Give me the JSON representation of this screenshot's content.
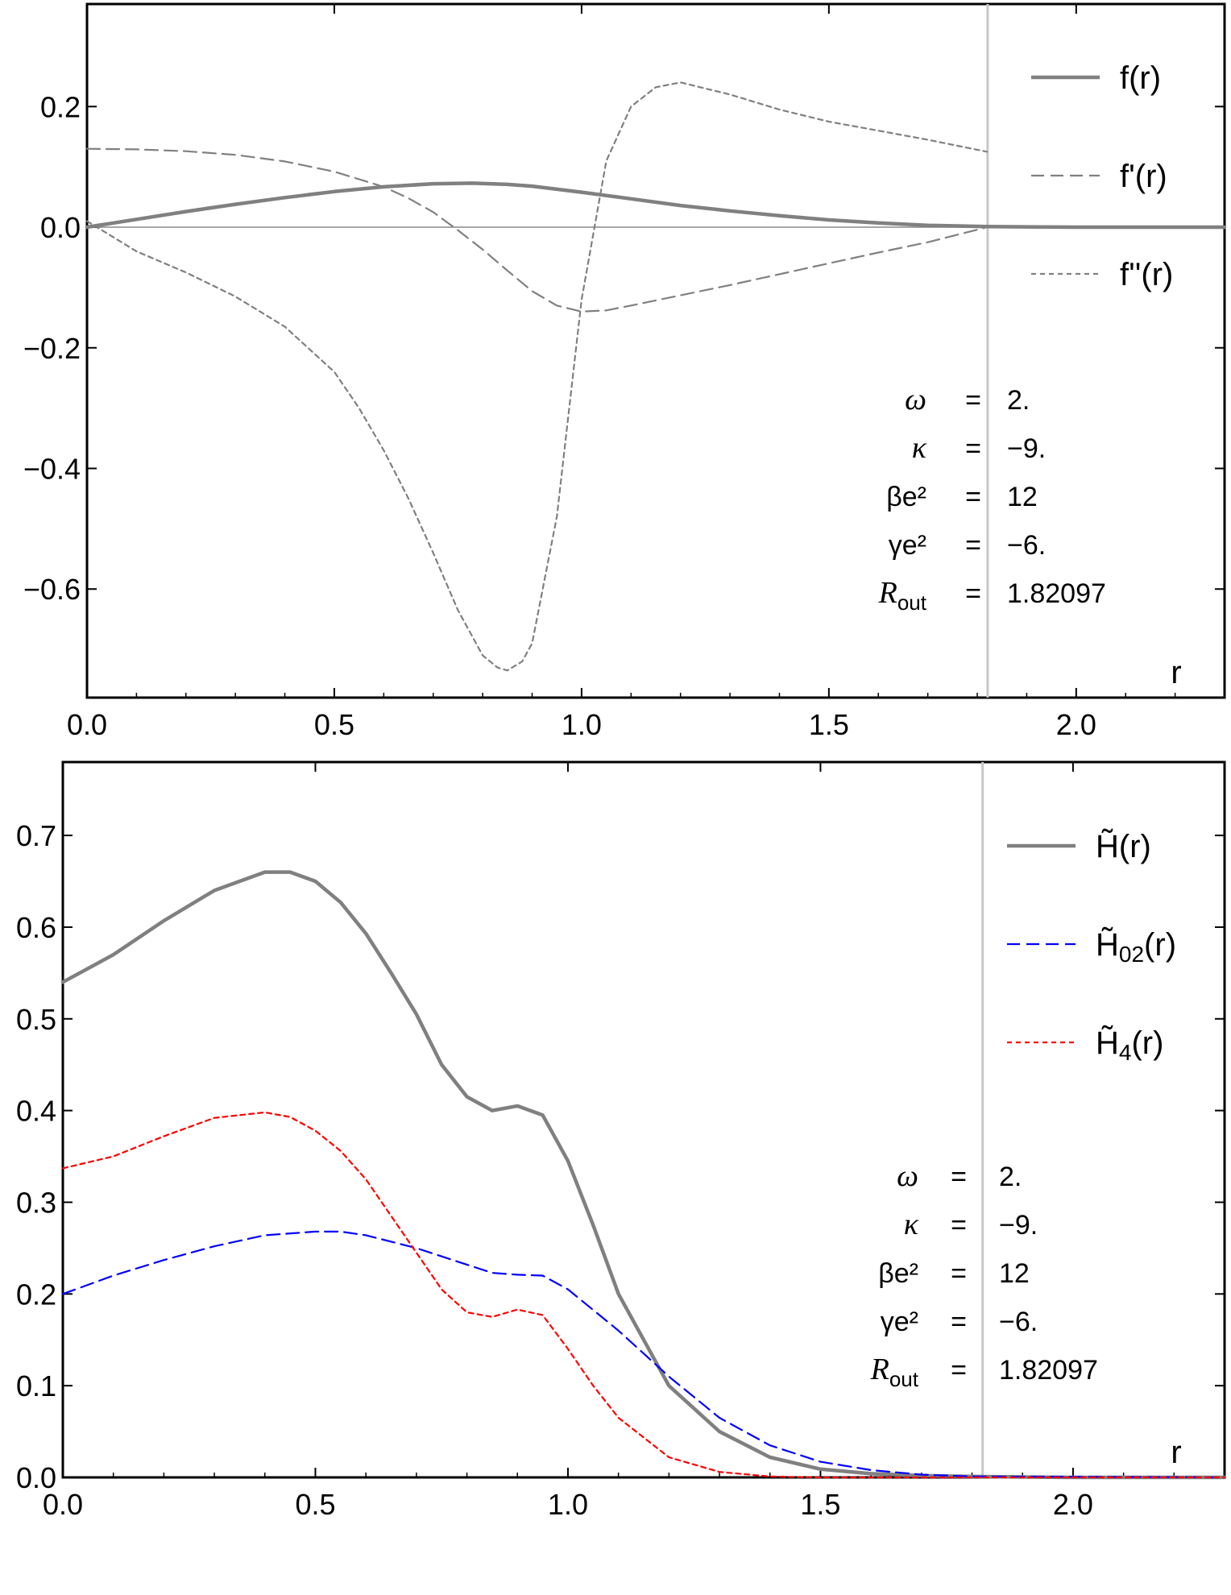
{
  "chart_data": [
    {
      "type": "line",
      "xlabel": "r",
      "xlim": [
        0,
        2.3
      ],
      "ylim": [
        -0.78,
        0.37
      ],
      "xticks": [
        "0.0",
        "0.5",
        "1.0",
        "1.5",
        "2.0"
      ],
      "yticks": [
        "−0.6",
        "−0.4",
        "−0.2",
        "0.0",
        "0.2"
      ],
      "xtick_values": [
        0,
        0.5,
        1.0,
        1.5,
        2.0
      ],
      "ytick_values": [
        -0.6,
        -0.4,
        -0.2,
        0.0,
        0.2
      ],
      "vline": 1.82097,
      "series": [
        {
          "name": "f(r)",
          "style": "solid",
          "color": "#808080",
          "x": [
            0,
            0.1,
            0.2,
            0.3,
            0.4,
            0.5,
            0.6,
            0.7,
            0.78,
            0.85,
            0.9,
            1.0,
            1.1,
            1.2,
            1.3,
            1.4,
            1.5,
            1.6,
            1.7,
            1.82,
            2.0,
            2.3
          ],
          "y": [
            0,
            0.013,
            0.026,
            0.038,
            0.049,
            0.059,
            0.067,
            0.072,
            0.073,
            0.071,
            0.068,
            0.058,
            0.047,
            0.036,
            0.027,
            0.019,
            0.012,
            0.007,
            0.003,
            0.001,
            0,
            0
          ]
        },
        {
          "name": "f'(r)",
          "style": "dashed",
          "color": "#808080",
          "x": [
            0,
            0.1,
            0.2,
            0.3,
            0.4,
            0.5,
            0.6,
            0.65,
            0.7,
            0.75,
            0.8,
            0.85,
            0.9,
            0.95,
            1.0,
            1.05,
            1.1,
            1.2,
            1.3,
            1.4,
            1.5,
            1.6,
            1.7,
            1.82
          ],
          "y": [
            0.13,
            0.129,
            0.126,
            0.12,
            0.109,
            0.092,
            0.067,
            0.048,
            0.025,
            -0.005,
            -0.037,
            -0.072,
            -0.106,
            -0.13,
            -0.14,
            -0.138,
            -0.13,
            -0.113,
            -0.096,
            -0.078,
            -0.06,
            -0.042,
            -0.025,
            0.0
          ]
        },
        {
          "name": "f''(r)",
          "style": "dotted",
          "color": "#808080",
          "x": [
            0,
            0.1,
            0.2,
            0.3,
            0.4,
            0.5,
            0.55,
            0.6,
            0.65,
            0.7,
            0.75,
            0.8,
            0.83,
            0.85,
            0.88,
            0.9,
            0.95,
            1.0,
            1.05,
            1.1,
            1.15,
            1.2,
            1.3,
            1.4,
            1.5,
            1.6,
            1.7,
            1.82
          ],
          "y": [
            0.01,
            -0.04,
            -0.075,
            -0.115,
            -0.165,
            -0.24,
            -0.3,
            -0.37,
            -0.45,
            -0.54,
            -0.635,
            -0.71,
            -0.73,
            -0.735,
            -0.72,
            -0.69,
            -0.48,
            -0.12,
            0.11,
            0.2,
            0.232,
            0.24,
            0.22,
            0.195,
            0.175,
            0.16,
            0.145,
            0.125
          ]
        }
      ],
      "params": [
        {
          "sym": "ω",
          "sub": "",
          "eq": "=",
          "val": "2."
        },
        {
          "sym": "κ",
          "sub": "",
          "eq": "=",
          "val": "−9."
        },
        {
          "sym": "βe²",
          "sub": "",
          "eq": "=",
          "val": "12"
        },
        {
          "sym": "γe²",
          "sub": "",
          "eq": "=",
          "val": "−6."
        },
        {
          "sym": "R",
          "sub": "out",
          "eq": "=",
          "val": "1.82097"
        }
      ]
    },
    {
      "type": "line",
      "xlabel": "r",
      "xlim": [
        0,
        2.3
      ],
      "ylim": [
        0,
        0.78
      ],
      "xticks": [
        "0.0",
        "0.5",
        "1.0",
        "1.5",
        "2.0"
      ],
      "yticks": [
        "0.0",
        "0.1",
        "0.2",
        "0.3",
        "0.4",
        "0.5",
        "0.6",
        "0.7"
      ],
      "xtick_values": [
        0,
        0.5,
        1.0,
        1.5,
        2.0
      ],
      "ytick_values": [
        0,
        0.1,
        0.2,
        0.3,
        0.4,
        0.5,
        0.6,
        0.7
      ],
      "vline": 1.82097,
      "series": [
        {
          "name": "H̃(r)",
          "sub": "",
          "style": "solid",
          "color": "#808080",
          "x": [
            0,
            0.1,
            0.2,
            0.3,
            0.4,
            0.45,
            0.5,
            0.55,
            0.6,
            0.65,
            0.7,
            0.75,
            0.8,
            0.85,
            0.9,
            0.95,
            1.0,
            1.05,
            1.1,
            1.2,
            1.3,
            1.4,
            1.5,
            1.6,
            1.7,
            1.8,
            2.0,
            2.3
          ],
          "y": [
            0.54,
            0.57,
            0.607,
            0.64,
            0.66,
            0.66,
            0.65,
            0.627,
            0.593,
            0.55,
            0.505,
            0.45,
            0.415,
            0.4,
            0.405,
            0.395,
            0.345,
            0.275,
            0.2,
            0.1,
            0.05,
            0.022,
            0.009,
            0.004,
            0.002,
            0.001,
            0,
            0
          ]
        },
        {
          "name": "H̃",
          "sub": "02",
          "suffix": "(r)",
          "style": "dashed",
          "color": "#0000ff",
          "x": [
            0,
            0.1,
            0.2,
            0.3,
            0.4,
            0.5,
            0.55,
            0.6,
            0.7,
            0.8,
            0.85,
            0.9,
            0.95,
            1.0,
            1.1,
            1.2,
            1.3,
            1.4,
            1.5,
            1.6,
            1.7,
            1.8,
            2.3
          ],
          "y": [
            0.2,
            0.22,
            0.237,
            0.252,
            0.264,
            0.268,
            0.268,
            0.264,
            0.25,
            0.232,
            0.223,
            0.221,
            0.22,
            0.205,
            0.16,
            0.11,
            0.065,
            0.035,
            0.017,
            0.008,
            0.003,
            0.001,
            0
          ]
        },
        {
          "name": "H̃",
          "sub": "4",
          "suffix": "(r)",
          "style": "dotted",
          "color": "#ff0000",
          "x": [
            0,
            0.1,
            0.2,
            0.3,
            0.4,
            0.45,
            0.5,
            0.55,
            0.6,
            0.65,
            0.7,
            0.75,
            0.8,
            0.85,
            0.9,
            0.95,
            1.0,
            1.05,
            1.1,
            1.2,
            1.3,
            1.4,
            1.5,
            2.3
          ],
          "y": [
            0.337,
            0.35,
            0.372,
            0.392,
            0.398,
            0.393,
            0.378,
            0.356,
            0.325,
            0.285,
            0.245,
            0.205,
            0.18,
            0.175,
            0.183,
            0.177,
            0.14,
            0.1,
            0.065,
            0.022,
            0.006,
            0.001,
            0,
            0
          ]
        }
      ],
      "params": [
        {
          "sym": "ω",
          "sub": "",
          "eq": "=",
          "val": "2."
        },
        {
          "sym": "κ",
          "sub": "",
          "eq": "=",
          "val": "−9."
        },
        {
          "sym": "βe²",
          "sub": "",
          "eq": "=",
          "val": "12"
        },
        {
          "sym": "γe²",
          "sub": "",
          "eq": "=",
          "val": "−6."
        },
        {
          "sym": "R",
          "sub": "out",
          "eq": "=",
          "val": "1.82097"
        }
      ]
    }
  ]
}
